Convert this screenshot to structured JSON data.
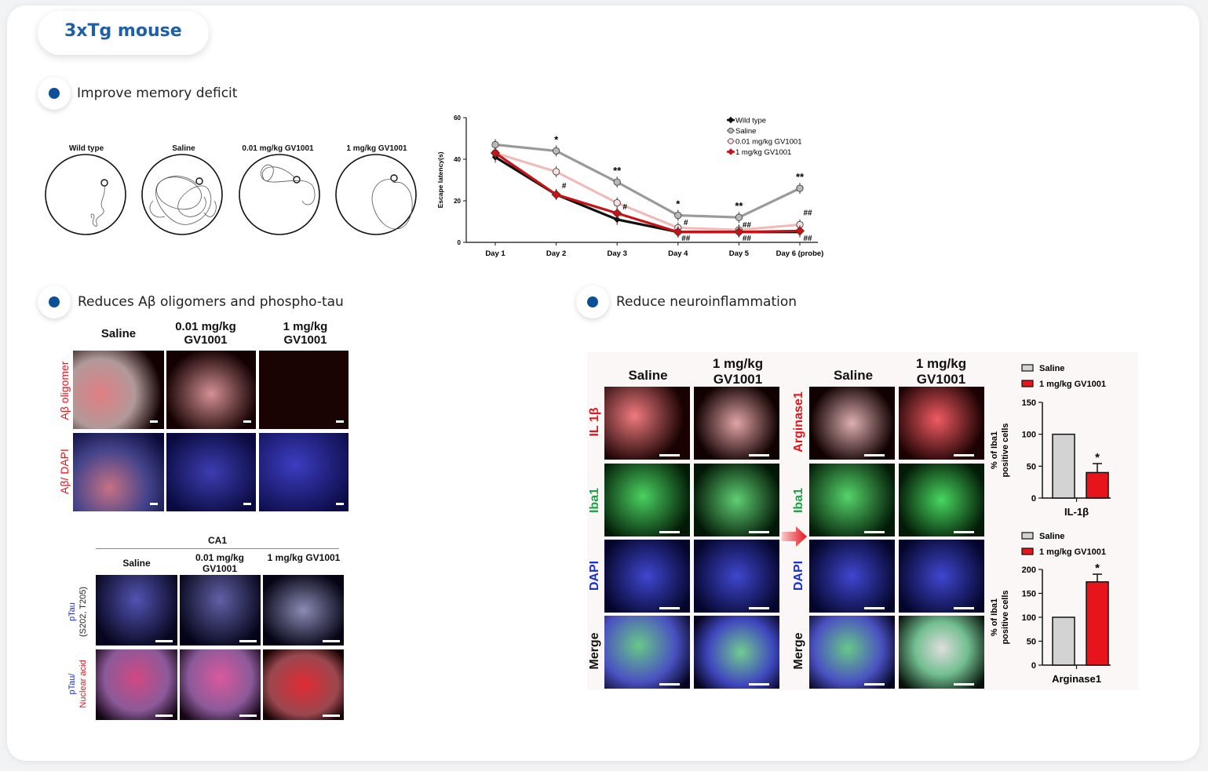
{
  "header": {
    "title": "3xTg mouse"
  },
  "sections": {
    "memory": "Improve memory deficit",
    "abeta": "Reduces Aβ oligomers and phospho-tau",
    "inflam": "Reduce neuroinflammation"
  },
  "maze": {
    "labels": [
      "Wild type",
      "Saline",
      "0.01 mg/kg GV1001",
      "1 mg/kg GV1001"
    ]
  },
  "abeta_panel": {
    "cols": [
      "Saline",
      "0.01 mg/kg GV1001",
      "1 mg/kg GV1001"
    ],
    "row1_label": "Aβ oligomer",
    "row2_label": "Aβ/ DAPI"
  },
  "ptau_panel": {
    "region": "CA1",
    "cols": [
      "Saline",
      "0.01 mg/kg GV1001",
      "1 mg/kg GV1001"
    ],
    "row1_label_a": "pTau",
    "row1_label_b": "(S202, T205)",
    "row2_label_a": "pTau/",
    "row2_label_b": "Nuclear acid"
  },
  "inflam_panel": {
    "cols": [
      "Saline",
      "1 mg/kg GV1001"
    ],
    "left_rows": [
      "IL 1β",
      "Iba1",
      "DAPI",
      "Merge"
    ],
    "right_rows": [
      "Arginase1",
      "Iba1",
      "DAPI",
      "Merge"
    ],
    "colors": {
      "red": "#e8141c",
      "green": "#16a642",
      "blue": "#1a2fd6"
    }
  },
  "chart_data": [
    {
      "type": "line",
      "title": "",
      "xlabel": "",
      "ylabel": "Escape latency(s)",
      "categories": [
        "Day 1",
        "Day 2",
        "Day 3",
        "Day 4",
        "Day 5",
        "Day 6 (probe)"
      ],
      "ylim": [
        0,
        60
      ],
      "yticks": [
        0,
        20,
        40,
        60
      ],
      "legend_position": "top-right",
      "series": [
        {
          "name": "Wild type",
          "color": "#111111",
          "values": [
            41,
            23,
            11,
            5,
            5,
            5
          ]
        },
        {
          "name": "Saline",
          "color": "#9a9a9a",
          "values": [
            47,
            44,
            29,
            13,
            12,
            26
          ]
        },
        {
          "name": "0.01 mg/kg GV1001",
          "color": "#f2b8b8",
          "values": [
            43,
            34,
            19,
            7,
            6,
            8.5
          ]
        },
        {
          "name": "1 mg/kg GV1001",
          "color": "#c41418",
          "values": [
            43,
            23,
            14,
            5,
            5,
            5.5
          ]
        }
      ],
      "annotations": [
        {
          "x": "Day 2",
          "text": "*"
        },
        {
          "x": "Day 3",
          "text": "**"
        },
        {
          "x": "Day 4",
          "text": "*"
        },
        {
          "x": "Day 5",
          "text": "**"
        },
        {
          "x": "Day 6 (probe)",
          "text": "**"
        },
        {
          "x": "Day 2",
          "text": "#"
        },
        {
          "x": "Day 3",
          "text": "#"
        },
        {
          "x": "Day 4",
          "text": "#"
        },
        {
          "x": "Day 4",
          "text": "##"
        },
        {
          "x": "Day 5",
          "text": "##"
        },
        {
          "x": "Day 5",
          "text": "##"
        },
        {
          "x": "Day 6 (probe)",
          "text": "##"
        },
        {
          "x": "Day 6 (probe)",
          "text": "##"
        }
      ]
    },
    {
      "type": "bar",
      "categories": [
        "Saline",
        "1 mg/kg GV1001"
      ],
      "values": [
        100,
        40
      ],
      "error": [
        0,
        14
      ],
      "colors": [
        "#d3d3d3",
        "#e8141c"
      ],
      "xlabel": "IL-1β",
      "ylabel": "% of Iba1 positive cells",
      "ylim": [
        0,
        150
      ],
      "yticks": [
        0,
        50,
        100,
        150
      ],
      "annotation": "*",
      "legend": [
        "Saline",
        "1 mg/kg GV1001"
      ]
    },
    {
      "type": "bar",
      "categories": [
        "Saline",
        "1 mg/kg GV1001"
      ],
      "values": [
        100,
        174
      ],
      "error": [
        0,
        16
      ],
      "colors": [
        "#d3d3d3",
        "#e8141c"
      ],
      "xlabel": "Arginase1",
      "ylabel": "% of Iba1 positive cells",
      "ylim": [
        0,
        200
      ],
      "yticks": [
        0,
        50,
        100,
        150,
        200
      ],
      "annotation": "*",
      "legend": [
        "Saline",
        "1 mg/kg GV1001"
      ]
    }
  ]
}
